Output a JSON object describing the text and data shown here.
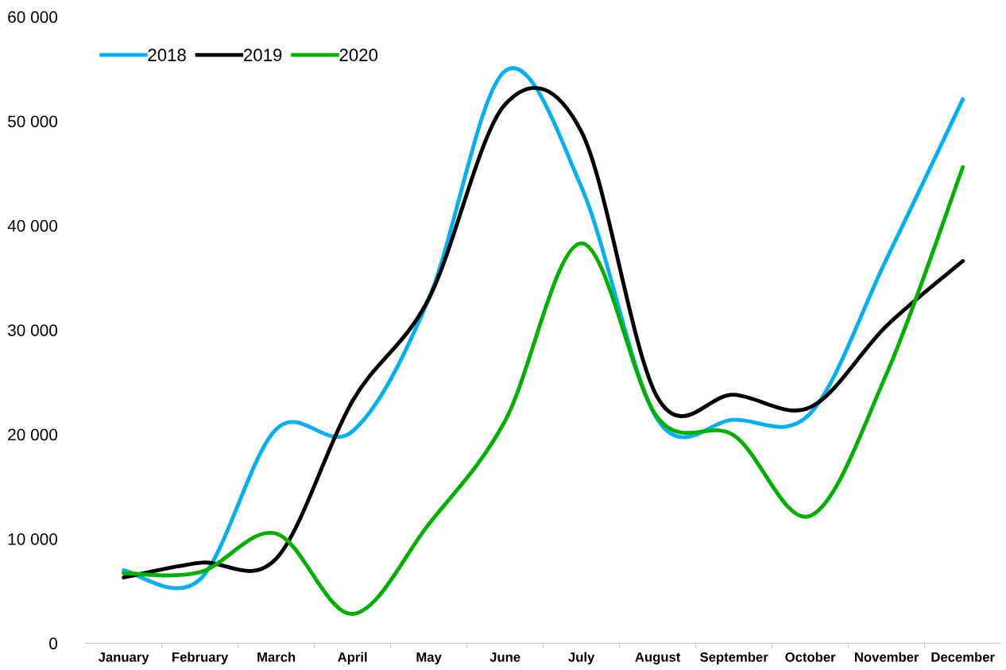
{
  "chart_data": {
    "type": "line",
    "categories": [
      "January",
      "February",
      "March",
      "April",
      "May",
      "June",
      "July",
      "August",
      "September",
      "October",
      "November",
      "December"
    ],
    "series": [
      {
        "name": "2018",
        "color": "#00b0f0",
        "values": [
          7000,
          6100,
          20500,
          20300,
          33000,
          54800,
          43700,
          21400,
          21400,
          22000,
          36800,
          52100
        ]
      },
      {
        "name": "2019",
        "color": "#000000",
        "values": [
          6300,
          7700,
          8100,
          23200,
          33000,
          51600,
          49000,
          23500,
          23800,
          22600,
          30400,
          36600
        ]
      },
      {
        "name": "2020",
        "color": "#00b000",
        "values": [
          6700,
          6800,
          10500,
          2800,
          11400,
          21300,
          38300,
          21600,
          19900,
          12200,
          25800,
          45600
        ]
      }
    ],
    "ylim": [
      0,
      60000
    ],
    "yticks": [
      {
        "value": 0,
        "label": "0"
      },
      {
        "value": 10000,
        "label": "10 000"
      },
      {
        "value": 20000,
        "label": "20 000"
      },
      {
        "value": 30000,
        "label": "30 000"
      },
      {
        "value": 40000,
        "label": "40 000"
      },
      {
        "value": 50000,
        "label": "50 000"
      },
      {
        "value": 60000,
        "label": "60 000"
      }
    ],
    "grid": false,
    "legend": "top left",
    "marker": "none",
    "line_style": "solid"
  }
}
